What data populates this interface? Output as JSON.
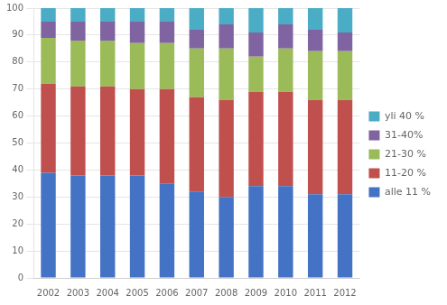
{
  "chart_data": {
    "type": "bar",
    "stacked": true,
    "categories": [
      "2002",
      "2003",
      "2004",
      "2005",
      "2006",
      "2007",
      "2008",
      "2009",
      "2010",
      "2011",
      "2012"
    ],
    "series": [
      {
        "name": "alle 11 %",
        "color": "#4472C4",
        "values": [
          39,
          38,
          38,
          38,
          35,
          32,
          30,
          34,
          34,
          31,
          31
        ]
      },
      {
        "name": "11-20 %",
        "color": "#C0504D",
        "values": [
          33,
          33,
          33,
          32,
          35,
          35,
          36,
          35,
          35,
          35,
          35
        ]
      },
      {
        "name": "21-30 %",
        "color": "#9BBB59",
        "values": [
          17,
          17,
          17,
          17,
          17,
          18,
          19,
          13,
          16,
          18,
          18
        ]
      },
      {
        "name": "31-40%",
        "color": "#8064A2",
        "values": [
          6,
          7,
          7,
          8,
          8,
          7,
          9,
          9,
          9,
          8,
          7
        ]
      },
      {
        "name": "yli 40 %",
        "color": "#4BACC6",
        "values": [
          5,
          5,
          5,
          5,
          5,
          8,
          6,
          9,
          6,
          8,
          9
        ]
      }
    ],
    "ylim": [
      0,
      100
    ],
    "yticks": [
      0,
      10,
      20,
      30,
      40,
      50,
      60,
      70,
      80,
      90,
      100
    ],
    "grid": true,
    "legend": "right"
  }
}
